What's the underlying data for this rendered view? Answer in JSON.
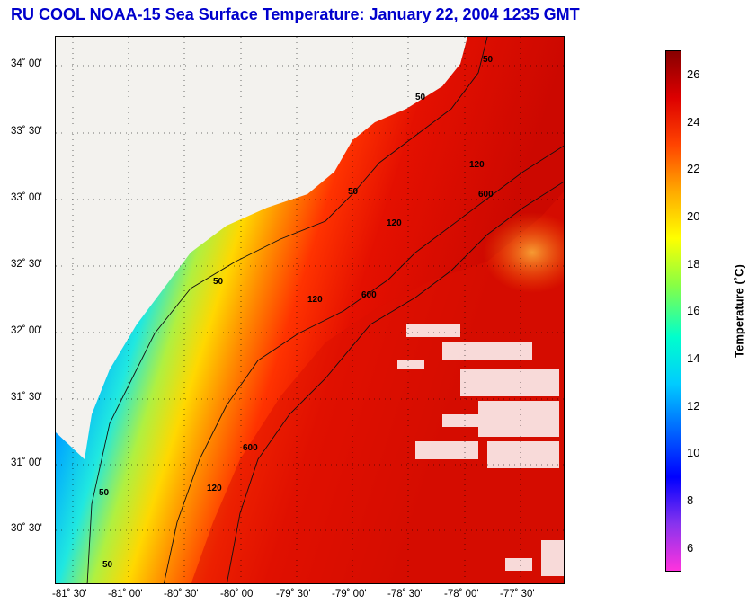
{
  "title": "RU COOL  NOAA-15  Sea Surface Temperature:  January 22, 2004 1235 GMT",
  "map": {
    "lat_labels": [
      "34˚ 00'",
      "33˚ 30'",
      "33˚ 00'",
      "32˚ 30'",
      "32˚ 00'",
      "31˚ 30'",
      "31˚ 00'",
      "30˚ 30'"
    ],
    "lon_labels": [
      "-81˚ 30'",
      "-81˚ 00'",
      "-80˚ 30'",
      "-80˚ 00'",
      "-79˚ 30'",
      "-79˚ 00'",
      "-78˚ 30'",
      "-78˚ 00'",
      "-77˚ 30'"
    ],
    "contour_labels": [
      "50",
      "50",
      "50",
      "50",
      "50",
      "50",
      "120",
      "120",
      "120",
      "120",
      "600",
      "600",
      "600"
    ],
    "land_color": "#f3f2ee"
  },
  "colorbar": {
    "label": "Temperature (˚C)",
    "min": 5,
    "max": 27,
    "ticks": [
      "26",
      "24",
      "22",
      "20",
      "18",
      "16",
      "14",
      "12",
      "10",
      "8",
      "6"
    ],
    "colors": [
      "#ff33dd",
      "#8833ee",
      "#0000ff",
      "#0066ff",
      "#00ccff",
      "#00ffcc",
      "#88ff44",
      "#ffff00",
      "#ffaa00",
      "#ff4400",
      "#dd0000",
      "#880000"
    ]
  }
}
